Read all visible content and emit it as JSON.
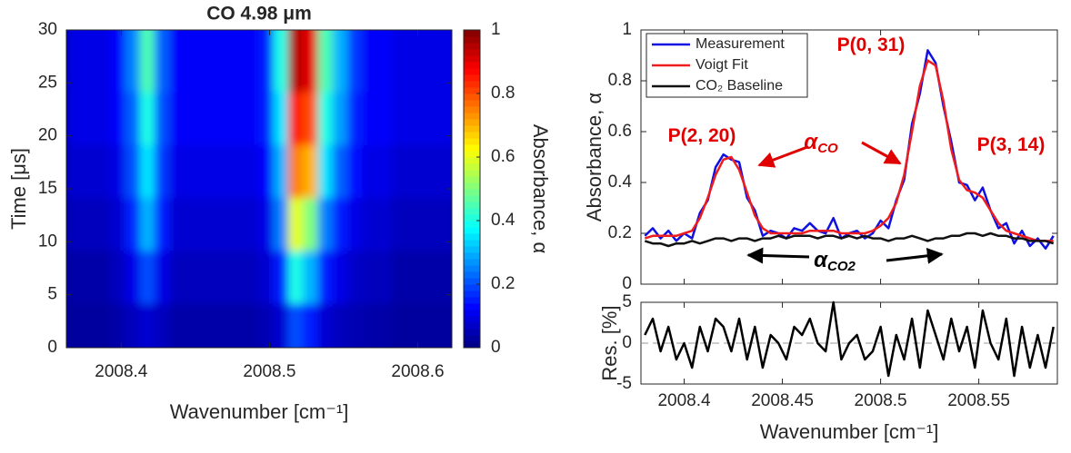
{
  "chart_data": [
    {
      "type": "heatmap",
      "title": "CO 4.98 μm",
      "x_label": "Wavenumber [cm⁻¹]",
      "y_label": "Time [μs]",
      "colorbar_label": "Absorbance, α",
      "colormap": "jet",
      "x": [
        2008.37,
        2008.38,
        2008.39,
        2008.4,
        2008.41,
        2008.42,
        2008.43,
        2008.44,
        2008.45,
        2008.46,
        2008.47,
        2008.48,
        2008.49,
        2008.5,
        2008.51,
        2008.52,
        2008.53,
        2008.54,
        2008.55,
        2008.56,
        2008.57,
        2008.58,
        2008.59,
        2008.6,
        2008.61,
        2008.62
      ],
      "y": [
        2.5,
        7.5,
        12.5,
        17.5,
        22.5,
        27.5
      ],
      "z": [
        [
          0.03,
          0.03,
          0.03,
          0.04,
          0.06,
          0.08,
          0.06,
          0.04,
          0.04,
          0.04,
          0.04,
          0.04,
          0.04,
          0.05,
          0.08,
          0.2,
          0.15,
          0.08,
          0.06,
          0.05,
          0.04,
          0.04,
          0.03,
          0.03,
          0.03,
          0.03
        ],
        [
          0.04,
          0.04,
          0.04,
          0.06,
          0.1,
          0.2,
          0.1,
          0.06,
          0.06,
          0.06,
          0.06,
          0.06,
          0.06,
          0.08,
          0.15,
          0.4,
          0.3,
          0.15,
          0.1,
          0.07,
          0.06,
          0.06,
          0.04,
          0.04,
          0.04,
          0.04
        ],
        [
          0.06,
          0.06,
          0.06,
          0.08,
          0.16,
          0.3,
          0.15,
          0.08,
          0.08,
          0.08,
          0.08,
          0.08,
          0.08,
          0.1,
          0.25,
          0.6,
          0.5,
          0.25,
          0.15,
          0.1,
          0.08,
          0.08,
          0.06,
          0.06,
          0.06,
          0.06
        ],
        [
          0.08,
          0.08,
          0.08,
          0.1,
          0.2,
          0.35,
          0.18,
          0.1,
          0.1,
          0.1,
          0.1,
          0.1,
          0.1,
          0.12,
          0.3,
          0.75,
          0.7,
          0.35,
          0.22,
          0.14,
          0.1,
          0.1,
          0.08,
          0.08,
          0.08,
          0.08
        ],
        [
          0.1,
          0.1,
          0.1,
          0.12,
          0.22,
          0.4,
          0.2,
          0.12,
          0.12,
          0.12,
          0.12,
          0.12,
          0.12,
          0.15,
          0.35,
          0.85,
          0.8,
          0.4,
          0.28,
          0.16,
          0.12,
          0.12,
          0.1,
          0.1,
          0.1,
          0.1
        ],
        [
          0.1,
          0.1,
          0.1,
          0.12,
          0.25,
          0.45,
          0.22,
          0.12,
          0.12,
          0.12,
          0.12,
          0.12,
          0.12,
          0.15,
          0.4,
          0.95,
          0.9,
          0.45,
          0.3,
          0.18,
          0.12,
          0.12,
          0.1,
          0.1,
          0.1,
          0.1
        ]
      ],
      "xlim": [
        2008.363,
        2008.623
      ],
      "ylim": [
        0,
        30
      ],
      "xticks": [
        2008.4,
        2008.5,
        2008.6
      ],
      "yticks": [
        0,
        5,
        10,
        15,
        20,
        25,
        30
      ],
      "clim": [
        0,
        1
      ],
      "cticks": [
        0,
        0.2,
        0.4,
        0.6,
        0.8,
        1
      ]
    },
    {
      "type": "line",
      "y_label": "Absorbance, α",
      "legend": "upper left",
      "show_x_tick_labels": false,
      "x": [
        2008.38,
        2008.384,
        2008.388,
        2008.392,
        2008.396,
        2008.4,
        2008.404,
        2008.408,
        2008.412,
        2008.416,
        2008.42,
        2008.424,
        2008.428,
        2008.432,
        2008.436,
        2008.44,
        2008.444,
        2008.448,
        2008.452,
        2008.456,
        2008.46,
        2008.464,
        2008.468,
        2008.472,
        2008.476,
        2008.48,
        2008.484,
        2008.488,
        2008.492,
        2008.496,
        2008.5,
        2008.504,
        2008.508,
        2008.512,
        2008.516,
        2008.52,
        2008.524,
        2008.528,
        2008.532,
        2008.536,
        2008.54,
        2008.544,
        2008.548,
        2008.552,
        2008.556,
        2008.56,
        2008.564,
        2008.568,
        2008.572,
        2008.576,
        2008.58,
        2008.584,
        2008.588
      ],
      "series": [
        {
          "name": "Measurement",
          "color": "#1010e0",
          "values": [
            0.19,
            0.22,
            0.18,
            0.21,
            0.17,
            0.2,
            0.18,
            0.28,
            0.33,
            0.46,
            0.51,
            0.49,
            0.48,
            0.34,
            0.29,
            0.19,
            0.21,
            0.2,
            0.18,
            0.22,
            0.21,
            0.24,
            0.21,
            0.2,
            0.26,
            0.18,
            0.2,
            0.21,
            0.18,
            0.2,
            0.25,
            0.22,
            0.33,
            0.41,
            0.63,
            0.75,
            0.92,
            0.87,
            0.7,
            0.56,
            0.4,
            0.39,
            0.33,
            0.38,
            0.29,
            0.22,
            0.24,
            0.16,
            0.21,
            0.15,
            0.18,
            0.14,
            0.19
          ]
        },
        {
          "name": "Voigt Fit",
          "color": "#ee1c1c",
          "values": [
            0.18,
            0.19,
            0.19,
            0.19,
            0.19,
            0.2,
            0.21,
            0.26,
            0.34,
            0.43,
            0.49,
            0.5,
            0.45,
            0.36,
            0.27,
            0.22,
            0.2,
            0.2,
            0.2,
            0.2,
            0.2,
            0.21,
            0.21,
            0.21,
            0.21,
            0.2,
            0.2,
            0.2,
            0.2,
            0.21,
            0.23,
            0.26,
            0.32,
            0.43,
            0.6,
            0.78,
            0.88,
            0.86,
            0.72,
            0.53,
            0.41,
            0.37,
            0.36,
            0.34,
            0.29,
            0.24,
            0.21,
            0.2,
            0.19,
            0.18,
            0.17,
            0.17,
            0.17
          ]
        },
        {
          "name": "CO₂ Baseline",
          "color": "#111111",
          "values": [
            0.17,
            0.16,
            0.16,
            0.15,
            0.16,
            0.16,
            0.17,
            0.16,
            0.17,
            0.18,
            0.18,
            0.17,
            0.18,
            0.18,
            0.17,
            0.18,
            0.18,
            0.19,
            0.18,
            0.19,
            0.19,
            0.19,
            0.18,
            0.19,
            0.19,
            0.18,
            0.19,
            0.18,
            0.19,
            0.18,
            0.18,
            0.17,
            0.18,
            0.18,
            0.19,
            0.18,
            0.17,
            0.18,
            0.18,
            0.19,
            0.19,
            0.2,
            0.2,
            0.19,
            0.2,
            0.19,
            0.19,
            0.18,
            0.18,
            0.17,
            0.17,
            0.17,
            0.16
          ]
        }
      ],
      "xlim": [
        2008.378,
        2008.59
      ],
      "ylim": [
        0,
        1
      ],
      "xticks": [
        2008.4,
        2008.45,
        2008.5,
        2008.55
      ],
      "yticks": [
        0,
        0.2,
        0.4,
        0.6,
        0.8,
        1
      ],
      "annotations": [
        {
          "text": "P(2, 20)",
          "color": "#e00000"
        },
        {
          "text": "P(0, 31)",
          "color": "#e00000"
        },
        {
          "text": "P(3, 14)",
          "color": "#e00000"
        },
        {
          "text": "α",
          "subscript": "CO",
          "color": "#e00000"
        },
        {
          "text": "α",
          "subscript": "CO2",
          "color": "#000000"
        }
      ]
    },
    {
      "type": "line",
      "x_label": "Wavenumber [cm⁻¹]",
      "y_label": "Res. [%]",
      "zero_line": true,
      "show_x_tick_labels": true,
      "x": [
        2008.38,
        2008.384,
        2008.388,
        2008.392,
        2008.396,
        2008.4,
        2008.404,
        2008.408,
        2008.412,
        2008.416,
        2008.42,
        2008.424,
        2008.428,
        2008.432,
        2008.436,
        2008.44,
        2008.444,
        2008.448,
        2008.452,
        2008.456,
        2008.46,
        2008.464,
        2008.468,
        2008.472,
        2008.476,
        2008.48,
        2008.484,
        2008.488,
        2008.492,
        2008.496,
        2008.5,
        2008.504,
        2008.508,
        2008.512,
        2008.516,
        2008.52,
        2008.524,
        2008.528,
        2008.532,
        2008.536,
        2008.54,
        2008.544,
        2008.548,
        2008.552,
        2008.556,
        2008.56,
        2008.564,
        2008.568,
        2008.572,
        2008.576,
        2008.58,
        2008.584,
        2008.588
      ],
      "series": [
        {
          "color": "#000000",
          "values": [
            1,
            3,
            -1,
            2,
            -2,
            0,
            -3,
            2,
            -1,
            3,
            2,
            -1,
            3,
            -2,
            2,
            -3,
            1,
            0,
            -2,
            2,
            1,
            3,
            0,
            -1,
            5,
            -2,
            0,
            1,
            -2,
            -1,
            2,
            -4,
            1,
            -2,
            3,
            -3,
            4,
            1,
            -2,
            3,
            -1,
            2,
            -3,
            4,
            0,
            -2,
            3,
            -4,
            2,
            -3,
            1,
            -3,
            2
          ]
        }
      ],
      "xlim": [
        2008.378,
        2008.59
      ],
      "ylim": [
        -5,
        5
      ],
      "xticks": [
        2008.4,
        2008.45,
        2008.5,
        2008.55
      ],
      "yticks": [
        -5,
        0,
        5
      ]
    }
  ]
}
